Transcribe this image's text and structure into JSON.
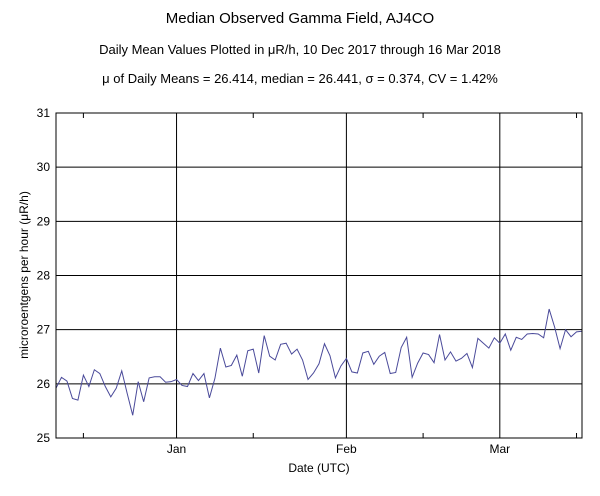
{
  "chart_data": {
    "type": "line",
    "title": "Median Observed Gamma Field, AJ4CO",
    "subtitle": "Daily Mean Values Plotted in μR/h, 10 Dec 2017 through 16 Mar 2018",
    "stats_line": "μ of Daily Means = 26.414,   median = 26.441,   σ = 0.374,   CV = 1.42%",
    "xlabel": "Date (UTC)",
    "ylabel": "microroentgens per hour (μR/h)",
    "ylim": [
      25,
      31
    ],
    "yticks": [
      "25",
      "26",
      "27",
      "28",
      "29",
      "30",
      "31"
    ],
    "xlim": [
      "2017-12-10",
      "2018-03-16"
    ],
    "xticks": [
      {
        "date": "2018-01-01",
        "label": "Jan"
      },
      {
        "date": "2018-02-01",
        "label": "Feb"
      },
      {
        "date": "2018-03-01",
        "label": "Mar"
      }
    ],
    "minor_xtick_dates": [
      "2017-12-15",
      "2018-01-15",
      "2018-02-15",
      "2018-03-15"
    ],
    "grid": true,
    "line_color": "#4a4a9a",
    "series": [
      {
        "start_date": "2017-12-10",
        "values": [
          25.92,
          26.12,
          26.05,
          25.73,
          25.7,
          26.16,
          25.95,
          26.26,
          26.19,
          25.95,
          25.76,
          25.92,
          26.24,
          25.82,
          25.42,
          26.04,
          25.67,
          26.11,
          26.13,
          26.13,
          26.03,
          26.04,
          26.08,
          25.97,
          25.95,
          26.19,
          26.06,
          26.19,
          25.74,
          26.1,
          26.66,
          26.31,
          26.34,
          26.53,
          26.14,
          26.61,
          26.64,
          26.2,
          26.89,
          26.51,
          26.44,
          26.73,
          26.75,
          26.55,
          26.64,
          26.44,
          26.08,
          26.2,
          26.37,
          26.74,
          26.52,
          26.11,
          26.33,
          26.47,
          26.22,
          26.2,
          26.57,
          26.6,
          26.36,
          26.51,
          26.58,
          26.19,
          26.21,
          26.67,
          26.86,
          26.12,
          26.38,
          26.57,
          26.54,
          26.39,
          26.91,
          26.44,
          26.59,
          26.42,
          26.47,
          26.56,
          26.3,
          26.84,
          26.75,
          26.66,
          26.85,
          26.75,
          26.92,
          26.62,
          26.86,
          26.82,
          26.92,
          26.93,
          26.92,
          26.85,
          27.38,
          27.05,
          26.65,
          27.0,
          26.87,
          26.96,
          26.97
        ]
      }
    ]
  }
}
